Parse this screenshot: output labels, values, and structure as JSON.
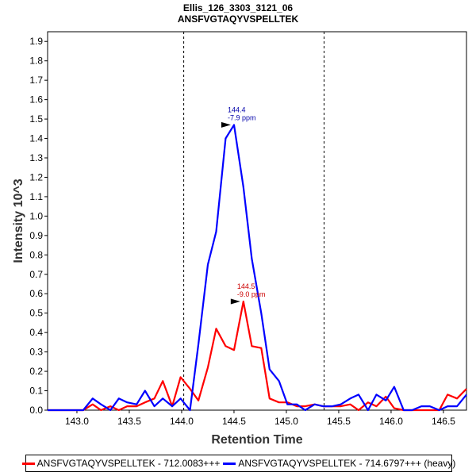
{
  "chart_data": {
    "type": "line",
    "title": "Ellis_126_3303_3121_06",
    "subtitle": "ANSFVGTAQYVSPELLTEK",
    "xlabel": "Retention Time",
    "ylabel": "Intensity 10^3",
    "xlim": [
      142.72,
      146.72
    ],
    "ylim": [
      0,
      1.95
    ],
    "xticks": [
      "143.0",
      "143.5",
      "144.0",
      "144.5",
      "145.0",
      "145.5",
      "146.0",
      "146.5"
    ],
    "yticks": [
      "0.0",
      "0.1",
      "0.2",
      "0.3",
      "0.4",
      "0.5",
      "0.6",
      "0.7",
      "0.8",
      "0.9",
      "1.0",
      "1.1",
      "1.2",
      "1.3",
      "1.4",
      "1.5",
      "1.6",
      "1.7",
      "1.8",
      "1.9"
    ],
    "grid": false,
    "legend_position": "bottom",
    "vlines": [
      144.02,
      145.36
    ],
    "series": [
      {
        "name": "ANSFVGTAQYVSPELLTEK - 712.0083+++",
        "color": "#ff0000",
        "x": [
          142.72,
          142.81,
          142.89,
          142.98,
          143.06,
          143.15,
          143.23,
          143.32,
          143.4,
          143.48,
          143.57,
          143.65,
          143.74,
          143.82,
          143.91,
          143.99,
          144.08,
          144.16,
          144.25,
          144.33,
          144.42,
          144.5,
          144.59,
          144.67,
          144.76,
          144.84,
          144.93,
          145.01,
          145.1,
          145.18,
          145.27,
          145.35,
          145.44,
          145.52,
          145.61,
          145.69,
          145.78,
          145.86,
          145.95,
          146.03,
          146.12,
          146.2,
          146.29,
          146.37,
          146.46,
          146.54,
          146.63,
          146.72
        ],
        "y": [
          0.0,
          0.0,
          0.0,
          0.0,
          0.0,
          0.03,
          0.0,
          0.02,
          0.0,
          0.02,
          0.02,
          0.04,
          0.06,
          0.15,
          0.02,
          0.17,
          0.11,
          0.05,
          0.22,
          0.42,
          0.33,
          0.31,
          0.56,
          0.33,
          0.32,
          0.06,
          0.04,
          0.04,
          0.02,
          0.02,
          0.03,
          0.02,
          0.02,
          0.02,
          0.03,
          0.0,
          0.04,
          0.02,
          0.07,
          0.01,
          0.0,
          0.0,
          0.0,
          0.0,
          0.0,
          0.08,
          0.06,
          0.11
        ]
      },
      {
        "name": "ANSFVGTAQYVSPELLTEK - 714.6797+++ (heavy)",
        "color": "#0000ff",
        "x": [
          142.72,
          142.81,
          142.89,
          142.98,
          143.06,
          143.15,
          143.23,
          143.32,
          143.4,
          143.48,
          143.57,
          143.65,
          143.74,
          143.82,
          143.91,
          143.99,
          144.08,
          144.16,
          144.25,
          144.33,
          144.42,
          144.5,
          144.59,
          144.67,
          144.76,
          144.84,
          144.93,
          145.01,
          145.1,
          145.18,
          145.27,
          145.35,
          145.44,
          145.52,
          145.61,
          145.69,
          145.78,
          145.86,
          145.95,
          146.03,
          146.12,
          146.2,
          146.29,
          146.37,
          146.46,
          146.54,
          146.63,
          146.72
        ],
        "y": [
          0.0,
          0.0,
          0.0,
          0.0,
          0.0,
          0.06,
          0.03,
          0.0,
          0.06,
          0.04,
          0.03,
          0.1,
          0.02,
          0.06,
          0.02,
          0.06,
          0.0,
          0.34,
          0.75,
          0.92,
          1.4,
          1.47,
          1.15,
          0.78,
          0.5,
          0.21,
          0.15,
          0.03,
          0.03,
          0.0,
          0.03,
          0.02,
          0.02,
          0.03,
          0.06,
          0.08,
          0.0,
          0.08,
          0.05,
          0.12,
          0.0,
          0.0,
          0.02,
          0.02,
          0.0,
          0.02,
          0.02,
          0.08
        ]
      }
    ],
    "annotations": [
      {
        "x": 144.5,
        "y": 1.47,
        "lines": [
          "144.4",
          "-7.9 ppm"
        ],
        "color": "#0000aa"
      },
      {
        "x": 144.59,
        "y": 0.56,
        "lines": [
          "144.5",
          "-9.0 ppm"
        ],
        "color": "#cc0000"
      }
    ]
  }
}
